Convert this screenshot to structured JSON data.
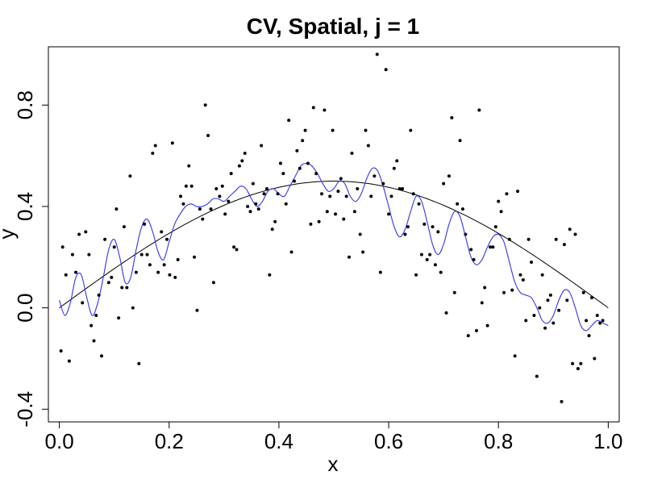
{
  "chart_data": {
    "type": "scatter",
    "title": "CV, Spatial, j = 1",
    "xlabel": "x",
    "ylabel": "y",
    "xlim": [
      -0.02,
      1.02
    ],
    "ylim": [
      -0.45,
      1.03
    ],
    "x_ticks": [
      0.0,
      0.2,
      0.4,
      0.6,
      0.8,
      1.0
    ],
    "x_tick_labels": [
      "0.0",
      "0.2",
      "0.4",
      "0.6",
      "0.8",
      "1.0"
    ],
    "y_ticks": [
      -0.4,
      0.0,
      0.4,
      0.8
    ],
    "y_tick_labels": [
      "-0.4",
      "0.0",
      "0.4",
      "0.8"
    ],
    "grid": false,
    "points": [
      [
        0.003,
        -0.17
      ],
      [
        0.006,
        0.24
      ],
      [
        0.012,
        0.13
      ],
      [
        0.018,
        -0.21
      ],
      [
        0.024,
        0.21
      ],
      [
        0.03,
        0.14
      ],
      [
        0.036,
        0.29
      ],
      [
        0.042,
        0.02
      ],
      [
        0.048,
        0.3
      ],
      [
        0.054,
        0.21
      ],
      [
        0.058,
        -0.07
      ],
      [
        0.063,
        -0.13
      ],
      [
        0.067,
        -0.03
      ],
      [
        0.072,
        0.05
      ],
      [
        0.077,
        -0.19
      ],
      [
        0.083,
        0.27
      ],
      [
        0.09,
        0.1
      ],
      [
        0.095,
        0.12
      ],
      [
        0.1,
        0.24
      ],
      [
        0.104,
        0.39
      ],
      [
        0.108,
        -0.04
      ],
      [
        0.114,
        0.08
      ],
      [
        0.118,
        0.32
      ],
      [
        0.123,
        0.08
      ],
      [
        0.129,
        0.52
      ],
      [
        0.134,
        0.0
      ],
      [
        0.14,
        0.14
      ],
      [
        0.145,
        -0.22
      ],
      [
        0.15,
        0.21
      ],
      [
        0.155,
        0.33
      ],
      [
        0.16,
        0.21
      ],
      [
        0.165,
        0.17
      ],
      [
        0.17,
        0.61
      ],
      [
        0.175,
        0.64
      ],
      [
        0.18,
        0.14
      ],
      [
        0.186,
        0.3
      ],
      [
        0.191,
        0.17
      ],
      [
        0.196,
        0.27
      ],
      [
        0.201,
        0.13
      ],
      [
        0.206,
        0.65
      ],
      [
        0.211,
        0.12
      ],
      [
        0.216,
        0.19
      ],
      [
        0.221,
        0.44
      ],
      [
        0.226,
        0.41
      ],
      [
        0.231,
        0.48
      ],
      [
        0.236,
        0.56
      ],
      [
        0.241,
        0.48
      ],
      [
        0.246,
        0.2
      ],
      [
        0.251,
        -0.01
      ],
      [
        0.256,
        0.39
      ],
      [
        0.261,
        0.35
      ],
      [
        0.266,
        0.8
      ],
      [
        0.271,
        0.68
      ],
      [
        0.276,
        0.39
      ],
      [
        0.281,
        0.1
      ],
      [
        0.286,
        0.47
      ],
      [
        0.292,
        0.44
      ],
      [
        0.297,
        0.48
      ],
      [
        0.302,
        0.37
      ],
      [
        0.308,
        0.42
      ],
      [
        0.313,
        0.53
      ],
      [
        0.318,
        0.24
      ],
      [
        0.323,
        0.23
      ],
      [
        0.328,
        0.56
      ],
      [
        0.333,
        0.58
      ],
      [
        0.338,
        0.61
      ],
      [
        0.343,
        0.4
      ],
      [
        0.348,
        0.38
      ],
      [
        0.353,
        0.49
      ],
      [
        0.358,
        0.41
      ],
      [
        0.363,
        0.39
      ],
      [
        0.368,
        0.64
      ],
      [
        0.373,
        0.45
      ],
      [
        0.378,
        0.47
      ],
      [
        0.383,
        0.13
      ],
      [
        0.388,
        0.31
      ],
      [
        0.393,
        0.34
      ],
      [
        0.398,
        0.45
      ],
      [
        0.403,
        0.57
      ],
      [
        0.408,
        0.53
      ],
      [
        0.413,
        0.41
      ],
      [
        0.418,
        0.74
      ],
      [
        0.423,
        0.22
      ],
      [
        0.428,
        0.5
      ],
      [
        0.433,
        0.62
      ],
      [
        0.438,
        0.55
      ],
      [
        0.443,
        0.66
      ],
      [
        0.448,
        0.7
      ],
      [
        0.453,
        0.57
      ],
      [
        0.458,
        0.33
      ],
      [
        0.463,
        0.79
      ],
      [
        0.468,
        0.53
      ],
      [
        0.473,
        0.34
      ],
      [
        0.478,
        0.45
      ],
      [
        0.483,
        0.78
      ],
      [
        0.488,
        0.38
      ],
      [
        0.493,
        0.44
      ],
      [
        0.498,
        0.7
      ],
      [
        0.503,
        0.37
      ],
      [
        0.508,
        0.46
      ],
      [
        0.513,
        0.51
      ],
      [
        0.518,
        0.35
      ],
      [
        0.523,
        0.44
      ],
      [
        0.528,
        0.2
      ],
      [
        0.533,
        0.61
      ],
      [
        0.538,
        0.38
      ],
      [
        0.543,
        0.47
      ],
      [
        0.548,
        0.29
      ],
      [
        0.553,
        0.22
      ],
      [
        0.558,
        0.7
      ],
      [
        0.563,
        0.64
      ],
      [
        0.568,
        0.44
      ],
      [
        0.574,
        0.52
      ],
      [
        0.579,
        1.0
      ],
      [
        0.585,
        0.14
      ],
      [
        0.59,
        0.49
      ],
      [
        0.595,
        0.94
      ],
      [
        0.6,
        0.37
      ],
      [
        0.605,
        0.44
      ],
      [
        0.61,
        0.55
      ],
      [
        0.615,
        0.58
      ],
      [
        0.62,
        0.47
      ],
      [
        0.625,
        0.47
      ],
      [
        0.63,
        0.29
      ],
      [
        0.635,
        0.32
      ],
      [
        0.64,
        0.7
      ],
      [
        0.645,
        0.45
      ],
      [
        0.65,
        0.13
      ],
      [
        0.655,
        0.41
      ],
      [
        0.66,
        0.21
      ],
      [
        0.665,
        0.33
      ],
      [
        0.67,
        0.19
      ],
      [
        0.675,
        0.21
      ],
      [
        0.68,
        0.32
      ],
      [
        0.685,
        0.17
      ],
      [
        0.69,
        0.3
      ],
      [
        0.695,
        0.14
      ],
      [
        0.7,
        0.49
      ],
      [
        0.705,
        -0.02
      ],
      [
        0.71,
        0.52
      ],
      [
        0.715,
        0.75
      ],
      [
        0.72,
        0.06
      ],
      [
        0.725,
        0.41
      ],
      [
        0.73,
        0.66
      ],
      [
        0.735,
        0.39
      ],
      [
        0.74,
        0.29
      ],
      [
        0.745,
        -0.11
      ],
      [
        0.75,
        0.23
      ],
      [
        0.755,
        0.19
      ],
      [
        0.76,
        -0.09
      ],
      [
        0.765,
        0.78
      ],
      [
        0.77,
        0.02
      ],
      [
        0.775,
        0.08
      ],
      [
        0.78,
        -0.07
      ],
      [
        0.785,
        0.24
      ],
      [
        0.79,
        0.24
      ],
      [
        0.795,
        0.32
      ],
      [
        0.8,
        0.42
      ],
      [
        0.805,
        0.38
      ],
      [
        0.81,
        0.06
      ],
      [
        0.815,
        0.45
      ],
      [
        0.82,
        0.27
      ],
      [
        0.825,
        0.07
      ],
      [
        0.83,
        -0.19
      ],
      [
        0.835,
        0.46
      ],
      [
        0.84,
        0.13
      ],
      [
        0.845,
        0.11
      ],
      [
        0.85,
        -0.05
      ],
      [
        0.855,
        0.27
      ],
      [
        0.86,
        0.18
      ],
      [
        0.865,
        -0.03
      ],
      [
        0.87,
        -0.27
      ],
      [
        0.875,
        0.0
      ],
      [
        0.88,
        0.13
      ],
      [
        0.885,
        -0.08
      ],
      [
        0.89,
        0.03
      ],
      [
        0.895,
        0.05
      ],
      [
        0.9,
        -0.06
      ],
      [
        0.905,
        0.27
      ],
      [
        0.91,
        -0.01
      ],
      [
        0.915,
        -0.37
      ],
      [
        0.92,
        0.25
      ],
      [
        0.925,
        0.03
      ],
      [
        0.93,
        0.31
      ],
      [
        0.935,
        -0.22
      ],
      [
        0.94,
        0.29
      ],
      [
        0.945,
        -0.24
      ],
      [
        0.95,
        -0.22
      ],
      [
        0.955,
        0.06
      ],
      [
        0.96,
        -0.05
      ],
      [
        0.965,
        -0.11
      ],
      [
        0.97,
        0.04
      ],
      [
        0.975,
        -0.2
      ],
      [
        0.98,
        -0.03
      ],
      [
        0.985,
        -0.06
      ],
      [
        0.99,
        -0.05
      ]
    ],
    "series": [
      {
        "style": "smooth",
        "color": "#000000",
        "description_formula": "0.5*sin(pi*x)"
      },
      {
        "style": "wiggly",
        "color": "#3333ee"
      }
    ],
    "blue_curve": {
      "x": [
        0.0,
        0.01,
        0.02,
        0.03,
        0.04,
        0.05,
        0.06,
        0.07,
        0.08,
        0.09,
        0.1,
        0.11,
        0.12,
        0.13,
        0.14,
        0.15,
        0.16,
        0.17,
        0.18,
        0.19,
        0.2,
        0.21,
        0.22,
        0.23,
        0.24,
        0.25,
        0.26,
        0.27,
        0.28,
        0.29,
        0.3,
        0.31,
        0.32,
        0.33,
        0.34,
        0.35,
        0.36,
        0.37,
        0.38,
        0.39,
        0.4,
        0.41,
        0.42,
        0.43,
        0.44,
        0.45,
        0.46,
        0.47,
        0.48,
        0.49,
        0.5,
        0.51,
        0.52,
        0.53,
        0.54,
        0.55,
        0.56,
        0.57,
        0.58,
        0.59,
        0.6,
        0.61,
        0.62,
        0.63,
        0.64,
        0.65,
        0.66,
        0.67,
        0.68,
        0.69,
        0.7,
        0.71,
        0.72,
        0.73,
        0.74,
        0.75,
        0.76,
        0.77,
        0.78,
        0.79,
        0.8,
        0.81,
        0.82,
        0.83,
        0.84,
        0.85,
        0.86,
        0.87,
        0.88,
        0.89,
        0.9,
        0.91,
        0.92,
        0.93,
        0.94,
        0.95,
        0.96,
        0.97,
        0.98,
        0.99,
        1.0
      ],
      "y": [
        0.03,
        -0.03,
        0.02,
        0.12,
        0.13,
        0.04,
        -0.03,
        0.02,
        0.12,
        0.23,
        0.27,
        0.2,
        0.1,
        0.12,
        0.23,
        0.32,
        0.35,
        0.3,
        0.22,
        0.19,
        0.26,
        0.33,
        0.37,
        0.4,
        0.41,
        0.4,
        0.4,
        0.41,
        0.43,
        0.43,
        0.42,
        0.44,
        0.46,
        0.48,
        0.47,
        0.43,
        0.4,
        0.42,
        0.46,
        0.47,
        0.45,
        0.44,
        0.48,
        0.52,
        0.56,
        0.57,
        0.56,
        0.53,
        0.49,
        0.46,
        0.47,
        0.5,
        0.49,
        0.44,
        0.42,
        0.45,
        0.51,
        0.55,
        0.54,
        0.48,
        0.4,
        0.32,
        0.28,
        0.31,
        0.38,
        0.44,
        0.42,
        0.34,
        0.25,
        0.21,
        0.25,
        0.33,
        0.38,
        0.36,
        0.28,
        0.2,
        0.17,
        0.19,
        0.24,
        0.28,
        0.29,
        0.26,
        0.18,
        0.1,
        0.06,
        0.05,
        0.04,
        0.0,
        -0.05,
        -0.06,
        -0.03,
        0.03,
        0.07,
        0.06,
        0.0,
        -0.07,
        -0.09,
        -0.07,
        -0.05,
        -0.06,
        -0.07
      ]
    }
  }
}
